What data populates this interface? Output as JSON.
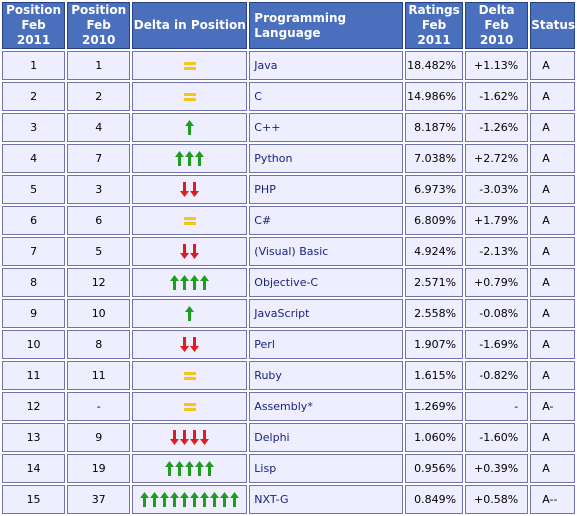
{
  "headers": {
    "pos2011": [
      "Position",
      "Feb 2011"
    ],
    "pos2010": [
      "Position",
      "Feb 2010"
    ],
    "delta_pos": "Delta in Position",
    "language": "Programming Language",
    "ratings": [
      "Ratings",
      "Feb 2011"
    ],
    "delta": [
      "Delta",
      "Feb 2010"
    ],
    "status": "Status"
  },
  "colors": {
    "header_bg": "#4a6fbd",
    "cell_bg": "#eeeeff",
    "arrow_up": "#1e9e1e",
    "arrow_down": "#e21b1b",
    "equal": "#f5c518"
  },
  "rows": [
    {
      "pos2011": "1",
      "pos2010": "1",
      "trend": "same",
      "count": 1,
      "language": "Java",
      "rating": "18.482%",
      "delta": "+1.13%",
      "status": "A"
    },
    {
      "pos2011": "2",
      "pos2010": "2",
      "trend": "same",
      "count": 1,
      "language": "C",
      "rating": "14.986%",
      "delta": "-1.62%",
      "status": "A"
    },
    {
      "pos2011": "3",
      "pos2010": "4",
      "trend": "up",
      "count": 1,
      "language": "C++",
      "rating": "8.187%",
      "delta": "-1.26%",
      "status": "A"
    },
    {
      "pos2011": "4",
      "pos2010": "7",
      "trend": "up",
      "count": 3,
      "language": "Python",
      "rating": "7.038%",
      "delta": "+2.72%",
      "status": "A"
    },
    {
      "pos2011": "5",
      "pos2010": "3",
      "trend": "down",
      "count": 2,
      "language": "PHP",
      "rating": "6.973%",
      "delta": "-3.03%",
      "status": "A"
    },
    {
      "pos2011": "6",
      "pos2010": "6",
      "trend": "same",
      "count": 1,
      "language": "C#",
      "rating": "6.809%",
      "delta": "+1.79%",
      "status": "A"
    },
    {
      "pos2011": "7",
      "pos2010": "5",
      "trend": "down",
      "count": 2,
      "language": "(Visual) Basic",
      "rating": "4.924%",
      "delta": "-2.13%",
      "status": "A"
    },
    {
      "pos2011": "8",
      "pos2010": "12",
      "trend": "up",
      "count": 4,
      "language": "Objective-C",
      "rating": "2.571%",
      "delta": "+0.79%",
      "status": "A"
    },
    {
      "pos2011": "9",
      "pos2010": "10",
      "trend": "up",
      "count": 1,
      "language": "JavaScript",
      "rating": "2.558%",
      "delta": "-0.08%",
      "status": "A"
    },
    {
      "pos2011": "10",
      "pos2010": "8",
      "trend": "down",
      "count": 2,
      "language": "Perl",
      "rating": "1.907%",
      "delta": "-1.69%",
      "status": "A"
    },
    {
      "pos2011": "11",
      "pos2010": "11",
      "trend": "same",
      "count": 1,
      "language": "Ruby",
      "rating": "1.615%",
      "delta": "-0.82%",
      "status": "A"
    },
    {
      "pos2011": "12",
      "pos2010": "-",
      "trend": "same",
      "count": 1,
      "language": "Assembly*",
      "rating": "1.269%",
      "delta": "-",
      "status": "A-"
    },
    {
      "pos2011": "13",
      "pos2010": "9",
      "trend": "down",
      "count": 4,
      "language": "Delphi",
      "rating": "1.060%",
      "delta": "-1.60%",
      "status": "A"
    },
    {
      "pos2011": "14",
      "pos2010": "19",
      "trend": "up",
      "count": 5,
      "language": "Lisp",
      "rating": "0.956%",
      "delta": "+0.39%",
      "status": "A"
    },
    {
      "pos2011": "15",
      "pos2010": "37",
      "trend": "up",
      "count": 10,
      "language": "NXT-G",
      "rating": "0.849%",
      "delta": "+0.58%",
      "status": "A--"
    }
  ]
}
